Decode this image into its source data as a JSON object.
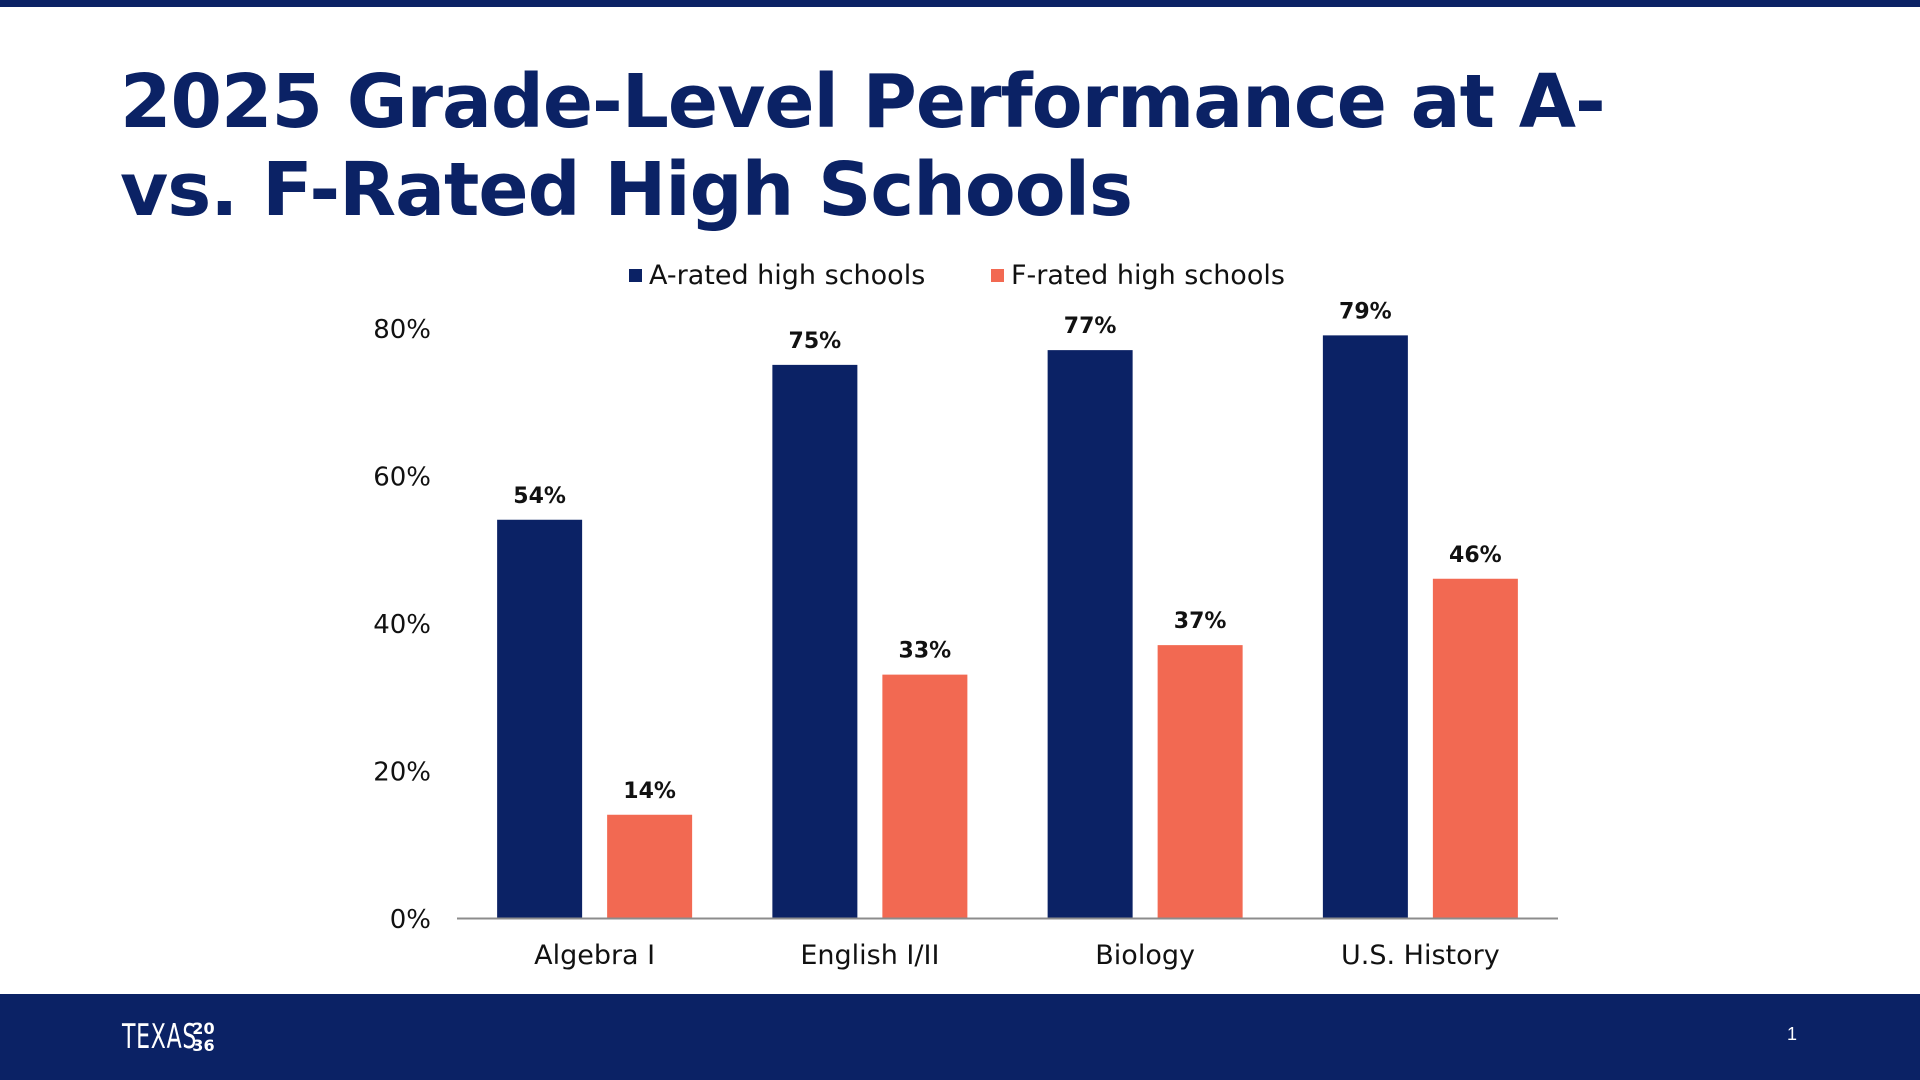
{
  "slide": {
    "title": "2025 Grade-Level Performance at A- vs. F-Rated High Schools",
    "page_number": "1"
  },
  "footer": {
    "logo_text": "TEXAS",
    "logo_year": [
      "2",
      "0",
      "3",
      "6"
    ]
  },
  "colors": {
    "navy": "#0b2265",
    "coral": "#f26952",
    "axis": "#8c8c8c",
    "text": "#111111"
  },
  "chart_data": {
    "type": "bar",
    "title": "",
    "xlabel": "",
    "ylabel": "",
    "categories": [
      "Algebra I",
      "English I/II",
      "Biology",
      "U.S. History"
    ],
    "series": [
      {
        "name": "A-rated high schools",
        "color": "#0b2265",
        "values": [
          54,
          75,
          77,
          79
        ],
        "labels": [
          "54%",
          "75%",
          "77%",
          "79%"
        ]
      },
      {
        "name": "F-rated high schools",
        "color": "#f26952",
        "values": [
          14,
          33,
          37,
          46
        ],
        "labels": [
          "14%",
          "33%",
          "37%",
          "46%"
        ]
      }
    ],
    "ylim": [
      0,
      80
    ],
    "yticks": [
      0,
      20,
      40,
      60,
      80
    ],
    "ytick_labels": [
      "0%",
      "20%",
      "40%",
      "60%",
      "80%"
    ],
    "grid": false,
    "legend_position": "top-center"
  }
}
